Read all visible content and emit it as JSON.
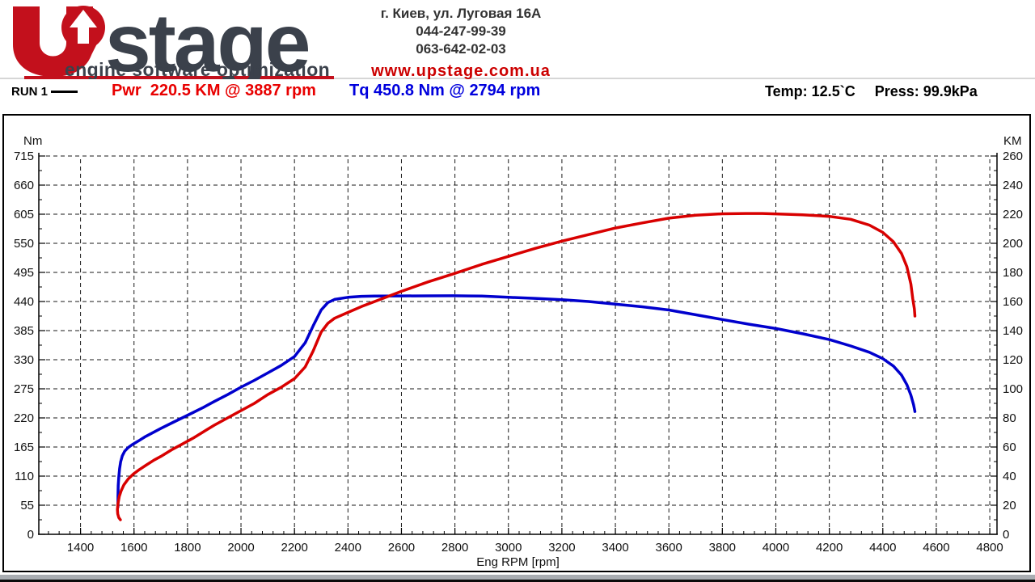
{
  "header": {
    "logo": {
      "brand": "stage",
      "monogram": "UP",
      "subtitle": "engine software optimization",
      "brand_color": "#3b414b",
      "red": "#c3101c"
    },
    "address": "г. Киев, ул. Луговая 16А",
    "phone1": "044-247-99-39",
    "phone2": "063-642-02-03",
    "website": "www.upstage.com.ua"
  },
  "legend": {
    "run_label": "RUN 1",
    "power_text": "Pwr  220.5 KM @ 3887 rpm",
    "torque_text": "Tq 450.8 Nm @ 2794 rpm",
    "temp_text": "Temp: 12.5`C",
    "press_text": "Press: 99.9kPa",
    "power_color": "#e80000",
    "torque_color": "#0000dd"
  },
  "chart_data": {
    "type": "line",
    "title": "",
    "xlabel": "Eng RPM [rpm]",
    "grid": "dashed",
    "x_range": [
      1244,
      4827
    ],
    "x_ticks": [
      1400,
      1600,
      1800,
      2000,
      2200,
      2400,
      2600,
      2800,
      3000,
      3200,
      3400,
      3600,
      3800,
      4000,
      4200,
      4400,
      4600,
      4800
    ],
    "x_minor_step": 40,
    "left_axis": {
      "title": "Nm",
      "range": [
        0,
        715
      ],
      "ticks": [
        0,
        55,
        110,
        165,
        220,
        275,
        330,
        385,
        440,
        495,
        550,
        605,
        660,
        715
      ],
      "minor_step": 27.5
    },
    "right_axis": {
      "title": "KM",
      "range": [
        0,
        260
      ],
      "ticks": [
        0,
        20,
        40,
        60,
        80,
        100,
        120,
        140,
        160,
        180,
        200,
        220,
        240,
        260
      ],
      "minor_step": 10
    },
    "peak_power": {
      "value": 220.5,
      "unit": "KM",
      "rpm": 3887
    },
    "peak_torque": {
      "value": 450.8,
      "unit": "Nm",
      "rpm": 2794
    },
    "series": [
      {
        "name": "Torque RUN 1",
        "axis": "left",
        "unit": "Nm",
        "color": "#0000cd",
        "points": [
          [
            1540,
            52
          ],
          [
            1540,
            72
          ],
          [
            1541,
            92
          ],
          [
            1543,
            108
          ],
          [
            1546,
            124
          ],
          [
            1550,
            137
          ],
          [
            1556,
            148
          ],
          [
            1565,
            157
          ],
          [
            1578,
            164
          ],
          [
            1595,
            170
          ],
          [
            1615,
            176
          ],
          [
            1640,
            184
          ],
          [
            1670,
            192
          ],
          [
            1700,
            200
          ],
          [
            1740,
            210
          ],
          [
            1780,
            220
          ],
          [
            1820,
            230
          ],
          [
            1860,
            240
          ],
          [
            1900,
            251
          ],
          [
            1950,
            264
          ],
          [
            2000,
            278
          ],
          [
            2050,
            291
          ],
          [
            2100,
            305
          ],
          [
            2150,
            319
          ],
          [
            2200,
            336
          ],
          [
            2240,
            362
          ],
          [
            2270,
            394
          ],
          [
            2300,
            424
          ],
          [
            2325,
            438
          ],
          [
            2350,
            444
          ],
          [
            2400,
            448
          ],
          [
            2450,
            449.8
          ],
          [
            2500,
            450.3
          ],
          [
            2600,
            450.5
          ],
          [
            2700,
            450.7
          ],
          [
            2794,
            450.8
          ],
          [
            2850,
            450.6
          ],
          [
            2900,
            450.2
          ],
          [
            3000,
            448
          ],
          [
            3100,
            446
          ],
          [
            3200,
            443.5
          ],
          [
            3300,
            440
          ],
          [
            3400,
            435
          ],
          [
            3500,
            430
          ],
          [
            3600,
            424
          ],
          [
            3700,
            415
          ],
          [
            3800,
            406
          ],
          [
            3900,
            397
          ],
          [
            4000,
            389
          ],
          [
            4100,
            379
          ],
          [
            4200,
            368
          ],
          [
            4280,
            356
          ],
          [
            4350,
            344
          ],
          [
            4400,
            332
          ],
          [
            4440,
            318
          ],
          [
            4470,
            301
          ],
          [
            4490,
            283
          ],
          [
            4505,
            263
          ],
          [
            4515,
            245
          ],
          [
            4520,
            232
          ]
        ]
      },
      {
        "name": "Power RUN 1",
        "axis": "right",
        "unit": "KM",
        "color": "#d80000",
        "points": [
          [
            1549,
            10
          ],
          [
            1543,
            11.5
          ],
          [
            1539,
            14
          ],
          [
            1538,
            17
          ],
          [
            1540,
            21
          ],
          [
            1545,
            26
          ],
          [
            1552,
            30
          ],
          [
            1562,
            34
          ],
          [
            1578,
            38
          ],
          [
            1598,
            41.5
          ],
          [
            1620,
            44.5
          ],
          [
            1645,
            47.5
          ],
          [
            1675,
            51
          ],
          [
            1700,
            53.5
          ],
          [
            1740,
            58
          ],
          [
            1780,
            62
          ],
          [
            1820,
            66
          ],
          [
            1860,
            70.5
          ],
          [
            1900,
            75
          ],
          [
            1950,
            80
          ],
          [
            2000,
            85
          ],
          [
            2050,
            90
          ],
          [
            2100,
            96
          ],
          [
            2150,
            101
          ],
          [
            2200,
            107
          ],
          [
            2240,
            115
          ],
          [
            2270,
            126
          ],
          [
            2300,
            139
          ],
          [
            2325,
            145
          ],
          [
            2350,
            148.5
          ],
          [
            2400,
            152.5
          ],
          [
            2450,
            156.5
          ],
          [
            2500,
            160
          ],
          [
            2600,
            167
          ],
          [
            2700,
            173.5
          ],
          [
            2794,
            179
          ],
          [
            2900,
            185.5
          ],
          [
            3000,
            191
          ],
          [
            3100,
            196.5
          ],
          [
            3200,
            201.5
          ],
          [
            3300,
            206
          ],
          [
            3400,
            210.5
          ],
          [
            3500,
            214
          ],
          [
            3600,
            217.3
          ],
          [
            3700,
            219.3
          ],
          [
            3800,
            220.3
          ],
          [
            3887,
            220.5
          ],
          [
            3950,
            220.5
          ],
          [
            4000,
            220.2
          ],
          [
            4100,
            219.6
          ],
          [
            4200,
            218.5
          ],
          [
            4280,
            216.5
          ],
          [
            4350,
            212.5
          ],
          [
            4400,
            207.5
          ],
          [
            4440,
            201
          ],
          [
            4470,
            193
          ],
          [
            4490,
            184
          ],
          [
            4505,
            172
          ],
          [
            4512,
            162
          ],
          [
            4518,
            155
          ],
          [
            4520,
            150
          ]
        ]
      }
    ]
  }
}
